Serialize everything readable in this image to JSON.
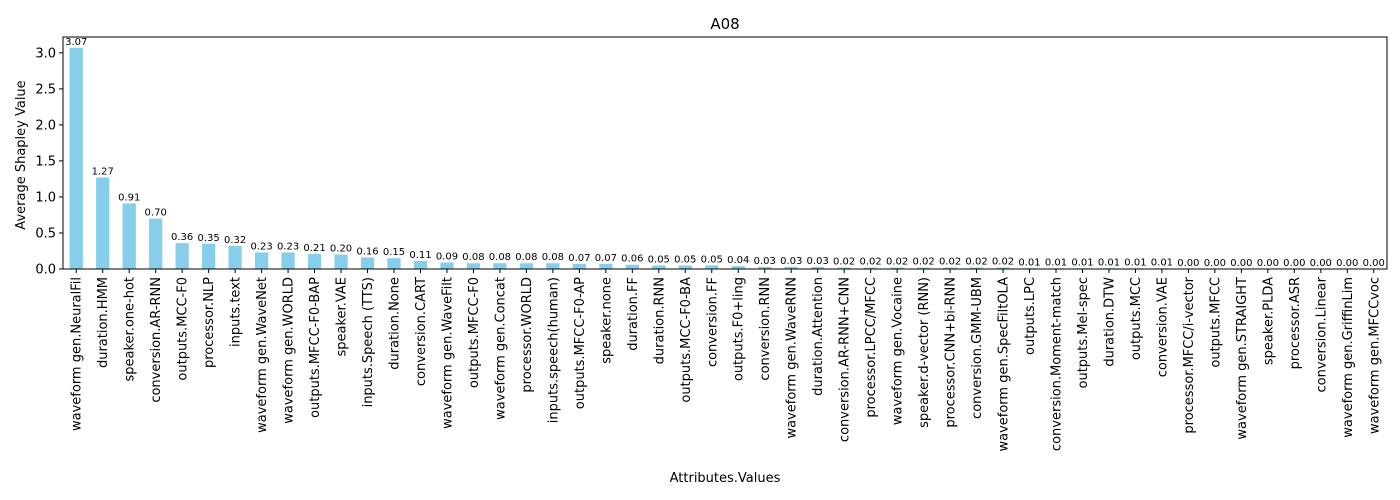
{
  "chart_data": {
    "type": "bar",
    "title": "A08",
    "xlabel": "Attributes.Values",
    "ylabel": "Average Shapley Value",
    "ylim": [
      0,
      3.22
    ],
    "yticks": [
      0.0,
      0.5,
      1.0,
      1.5,
      2.0,
      2.5,
      3.0
    ],
    "ytick_labels": [
      "0.0",
      "0.5",
      "1.0",
      "1.5",
      "2.0",
      "2.5",
      "3.0"
    ],
    "grid": false,
    "bar_color": "#87ceeb",
    "categories": [
      "waveform gen.NeuralFil",
      "duration.HMM",
      "speaker.one-hot",
      "conversion.AR-RNN",
      "outputs.MCC-F0",
      "processor.NLP",
      "inputs.text",
      "waveform gen.WaveNet",
      "waveform gen.WORLD",
      "outputs.MFCC-F0-BAP",
      "speaker.VAE",
      "inputs.Speech (TTS)",
      "duration.None",
      "conversion.CART",
      "waveform gen.WaveFilt",
      "outputs.MFCC-F0",
      "waveform gen.Concat",
      "processor.WORLD",
      "inputs.speech(human)",
      "outputs.MFCC-F0-AP",
      "speaker.none",
      "duration.FF",
      "duration.RNN",
      "outputs.MCC-F0-BA",
      "conversion.FF",
      "outputs.F0+ling",
      "conversion.RNN",
      "waveform gen.WaveRNN",
      "duration.Attention",
      "conversion.AR-RNN+CNN",
      "processor.LPCC/MFCC",
      "waveform gen.Vocaine",
      "speaker.d-vector (RNN)",
      "processor.CNN+bi-RNN",
      "conversion.GMM-UBM",
      "waveform gen.SpecFiltOLA",
      "outputs.LPC",
      "conversion.Moment-match",
      "outputs.Mel-spec",
      "duration.DTW",
      "outputs.MCC",
      "conversion.VAE",
      "processor.MFCC/i-vector",
      "outputs.MFCC",
      "waveform gen.STRAIGHT",
      "speaker.PLDA",
      "processor.ASR",
      "conversion.Linear",
      "waveform gen.GriffinLim",
      "waveform gen.MFCCvoc"
    ],
    "values": [
      3.07,
      1.27,
      0.91,
      0.7,
      0.36,
      0.35,
      0.32,
      0.23,
      0.23,
      0.21,
      0.2,
      0.16,
      0.15,
      0.11,
      0.09,
      0.08,
      0.08,
      0.08,
      0.08,
      0.07,
      0.07,
      0.06,
      0.05,
      0.05,
      0.05,
      0.04,
      0.03,
      0.03,
      0.03,
      0.02,
      0.02,
      0.02,
      0.02,
      0.02,
      0.02,
      0.02,
      0.01,
      0.01,
      0.01,
      0.01,
      0.01,
      0.01,
      0.0,
      0.0,
      0.0,
      0.0,
      0.0,
      0.0,
      0.0,
      0.0
    ],
    "value_labels": [
      "3.07",
      "1.27",
      "0.91",
      "0.70",
      "0.36",
      "0.35",
      "0.32",
      "0.23",
      "0.23",
      "0.21",
      "0.20",
      "0.16",
      "0.15",
      "0.11",
      "0.09",
      "0.08",
      "0.08",
      "0.08",
      "0.08",
      "0.07",
      "0.07",
      "0.06",
      "0.05",
      "0.05",
      "0.05",
      "0.04",
      "0.03",
      "0.03",
      "0.03",
      "0.02",
      "0.02",
      "0.02",
      "0.02",
      "0.02",
      "0.02",
      "0.02",
      "0.01",
      "0.01",
      "0.01",
      "0.01",
      "0.01",
      "0.01",
      "0.00",
      "0.00",
      "0.00",
      "0.00",
      "0.00",
      "0.00",
      "0.00",
      "0.00"
    ]
  }
}
